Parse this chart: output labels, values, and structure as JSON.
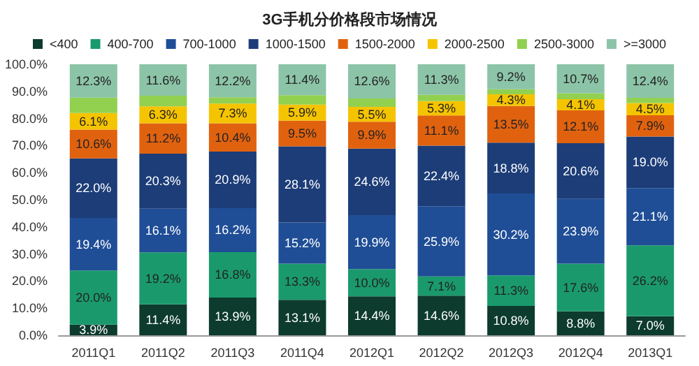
{
  "chart_data": {
    "type": "bar",
    "title": "3G手机分价格段市场情况",
    "stacked": true,
    "legend": "top",
    "grid": false,
    "categories": [
      "2011Q1",
      "2011Q2",
      "2011Q3",
      "2011Q4",
      "2012Q1",
      "2012Q2",
      "2012Q3",
      "2012Q4",
      "2013Q1"
    ],
    "ylim": [
      0,
      100
    ],
    "yticks": [
      {
        "value": 0,
        "label": "0.0%"
      },
      {
        "value": 10,
        "label": "10.0%"
      },
      {
        "value": 20,
        "label": "20.0%"
      },
      {
        "value": 30,
        "label": "30.0%"
      },
      {
        "value": 40,
        "label": "40.0%"
      },
      {
        "value": 50,
        "label": "50.0%"
      },
      {
        "value": 60,
        "label": "60.0%"
      },
      {
        "value": 70,
        "label": "70.0%"
      },
      {
        "value": 80,
        "label": "80.0%"
      },
      {
        "value": 90,
        "label": "90.0%"
      },
      {
        "value": 100,
        "label": "100.0%"
      }
    ],
    "series": [
      {
        "name": "<400",
        "color": "#0d3b2e",
        "values": [
          3.9,
          11.4,
          13.9,
          13.1,
          14.4,
          14.6,
          10.8,
          8.8,
          7.0
        ],
        "value_labels": [
          "3.9%",
          "11.4%",
          "13.9%",
          "13.1%",
          "14.4%",
          "14.6%",
          "10.8%",
          "8.8%",
          "7.0%"
        ]
      },
      {
        "name": "400-700",
        "color": "#1a9a6c",
        "values": [
          20.0,
          19.2,
          16.8,
          13.3,
          10.0,
          7.1,
          11.3,
          17.6,
          26.2
        ],
        "value_labels": [
          "20.0%",
          "19.2%",
          "16.8%",
          "13.3%",
          "10.0%",
          "7.1%",
          "11.3%",
          "17.6%",
          "26.2%"
        ]
      },
      {
        "name": "700-1000",
        "color": "#1f4e96",
        "values": [
          19.4,
          16.1,
          16.2,
          15.2,
          19.9,
          25.9,
          30.2,
          23.9,
          21.1
        ],
        "value_labels": [
          "19.4%",
          "16.1%",
          "16.2%",
          "15.2%",
          "19.9%",
          "25.9%",
          "30.2%",
          "23.9%",
          "21.1%"
        ]
      },
      {
        "name": "1000-1500",
        "color": "#1c3d78",
        "values": [
          22.0,
          20.3,
          20.9,
          28.1,
          24.6,
          22.4,
          18.8,
          20.6,
          19.0
        ],
        "value_labels": [
          "22.0%",
          "20.3%",
          "20.9%",
          "28.1%",
          "24.6%",
          "22.4%",
          "18.8%",
          "20.6%",
          "19.0%"
        ]
      },
      {
        "name": "1500-2000",
        "color": "#e0620f",
        "values": [
          10.6,
          11.2,
          10.4,
          9.5,
          9.9,
          11.1,
          13.5,
          12.1,
          7.9
        ],
        "value_labels": [
          "10.6%",
          "11.2%",
          "10.4%",
          "9.5%",
          "9.9%",
          "11.1%",
          "13.5%",
          "12.1%",
          "7.9%"
        ]
      },
      {
        "name": "2000-2500",
        "color": "#f5c400",
        "values": [
          6.1,
          6.3,
          7.3,
          5.9,
          5.5,
          5.3,
          4.3,
          4.1,
          4.5
        ],
        "value_labels": [
          "6.1%",
          "6.3%",
          "7.3%",
          "5.9%",
          "5.5%",
          "5.3%",
          "4.3%",
          "4.1%",
          "4.5%"
        ]
      },
      {
        "name": "2500-3000",
        "color": "#92d050",
        "values": [
          5.7,
          3.9,
          2.3,
          3.5,
          3.1,
          2.3,
          1.9,
          2.2,
          1.9
        ]
      },
      {
        "name": ">=3000",
        "color": "#8cc4a8",
        "values": [
          12.3,
          11.6,
          12.2,
          11.4,
          12.6,
          11.3,
          9.2,
          10.7,
          12.4
        ],
        "value_labels": [
          "12.3%",
          "11.6%",
          "12.2%",
          "11.4%",
          "12.6%",
          "11.3%",
          "9.2%",
          "10.7%",
          "12.4%"
        ]
      }
    ]
  }
}
